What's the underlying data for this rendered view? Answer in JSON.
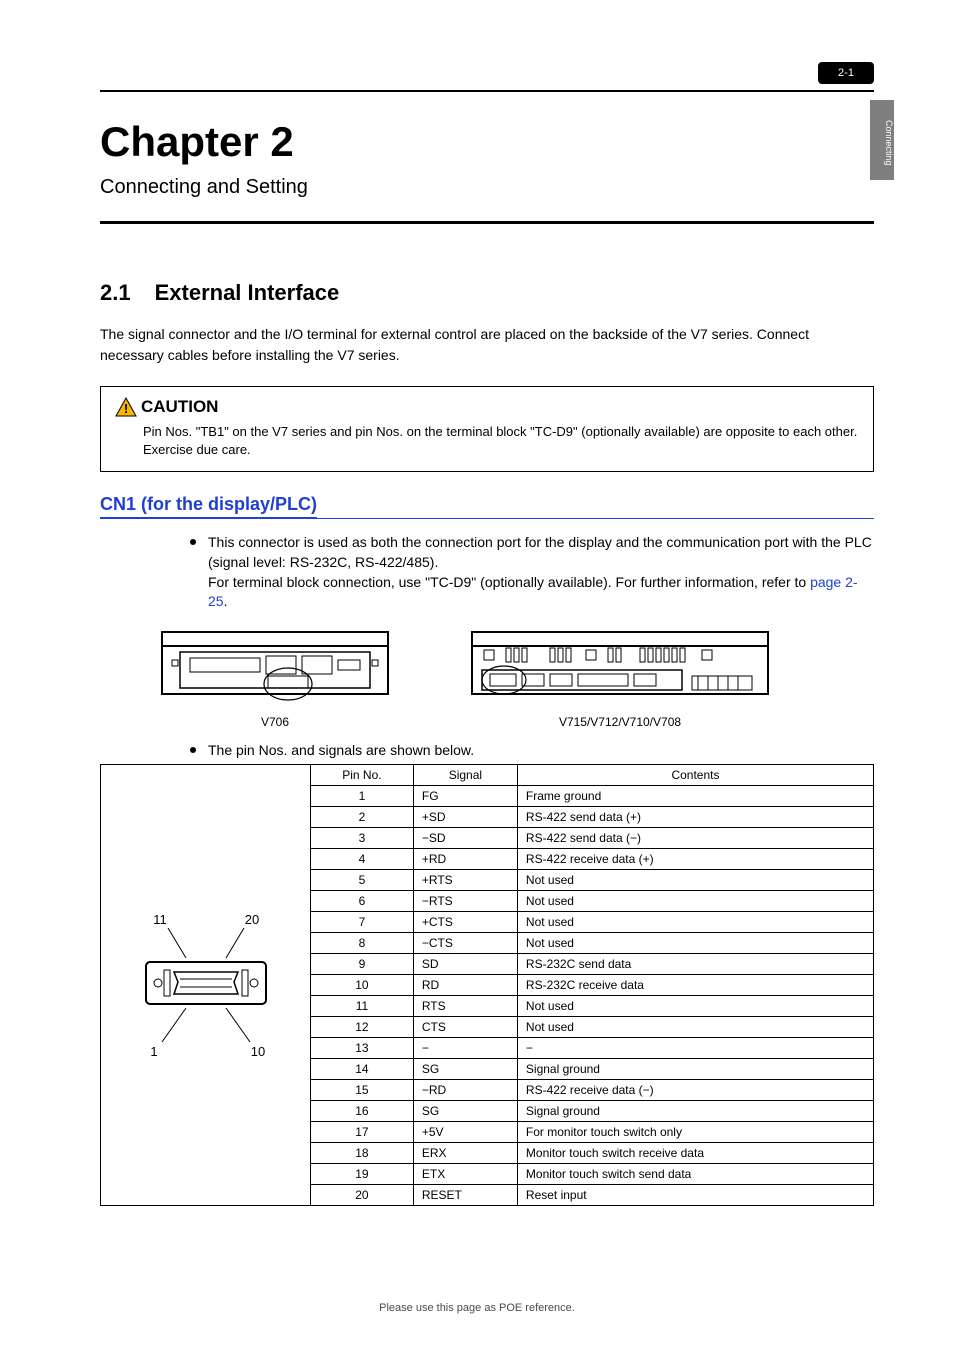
{
  "top_tab": "2-1",
  "side_tab": "Connecting",
  "chapter": "Chapter 2",
  "subtitle": "Connecting and Setting",
  "section_no": "2.1",
  "section_title": "External Interface",
  "intro": "The signal connector and the I/O terminal for external control are placed on the backside of the V7 series. Connect necessary cables before installing the V7 series.",
  "caution_label": "CAUTION",
  "caution_body": "Pin Nos. \"TB1\" on the V7 series and pin Nos. on the terminal block \"TC-D9\" (optionally available) are opposite to each other. Exercise due care.",
  "subhead": "CN1 (for the display/PLC)",
  "bullet1_a": "This connector is used as both the connection port for the display and the communication port with the PLC (signal level: RS-232C, RS-422/485).",
  "bullet1_b_text": "For terminal block connection, use \"TC-D9\" (optionally available). For further information, refer to ",
  "bullet1_b_link": "page 2-25",
  "bullet1_b_tail": ".",
  "diagram_left_caption": "V706",
  "diagram_right_caption": "V715/V712/V710/V708",
  "bullet2": "The pin Nos. and signals are shown below.",
  "pin_diagram": {
    "labels": [
      "11",
      "20",
      "1",
      "10"
    ]
  },
  "table": {
    "headers": [
      "Pin No.",
      "Signal",
      "Contents"
    ],
    "rows": [
      [
        "1",
        "FG",
        "Frame ground"
      ],
      [
        "2",
        "+SD",
        "RS-422 send data (+)"
      ],
      [
        "3",
        "−SD",
        "RS-422 send data (−)"
      ],
      [
        "4",
        "+RD",
        "RS-422 receive data (+)"
      ],
      [
        "5",
        "+RTS",
        "Not used"
      ],
      [
        "6",
        "−RTS",
        "Not used"
      ],
      [
        "7",
        "+CTS",
        "Not used"
      ],
      [
        "8",
        "−CTS",
        "Not used"
      ],
      [
        "9",
        "SD",
        "RS-232C send data"
      ],
      [
        "10",
        "RD",
        "RS-232C receive data"
      ],
      [
        "11",
        "RTS",
        "Not used"
      ],
      [
        "12",
        "CTS",
        "Not used"
      ],
      [
        "13",
        "−",
        "−"
      ],
      [
        "14",
        "SG",
        "Signal ground"
      ],
      [
        "15",
        "−RD",
        "RS-422 receive data (−)"
      ],
      [
        "16",
        "SG",
        "Signal ground"
      ],
      [
        "17",
        "+5V",
        "For monitor touch switch only"
      ],
      [
        "18",
        "ERX",
        "Monitor touch switch receive data"
      ],
      [
        "19",
        "ETX",
        "Monitor touch switch send data"
      ],
      [
        "20",
        "RESET",
        "Reset input"
      ]
    ]
  },
  "footer": "Please use this page as POE reference."
}
